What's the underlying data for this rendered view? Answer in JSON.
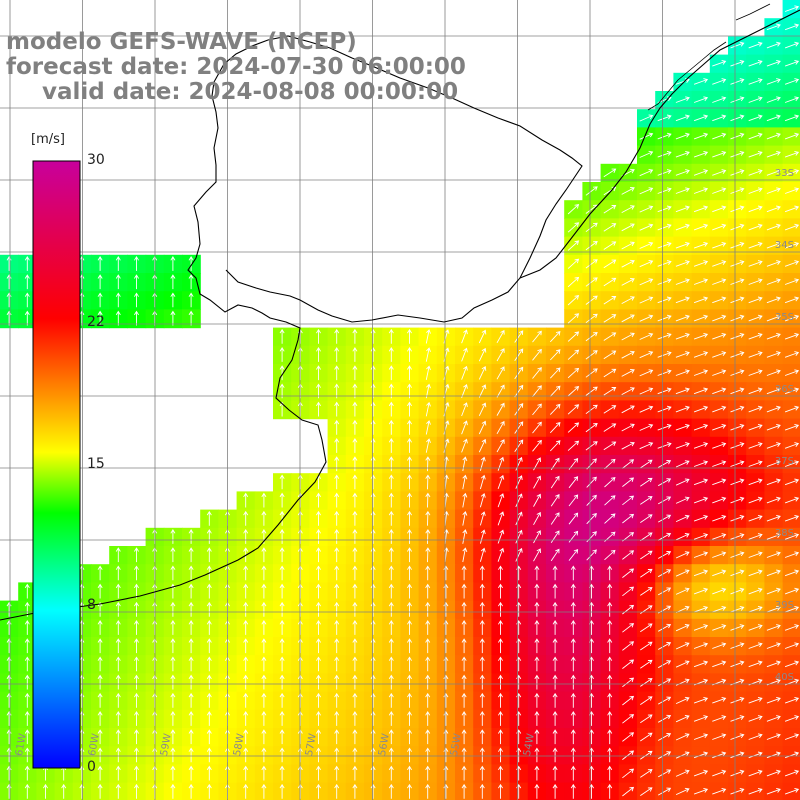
{
  "title": {
    "line1": "modelo GEFS-WAVE (NCEP)",
    "line2": "forecast date: 2024-07-30 06:00:00",
    "line3": "valid date: 2024-08-08 00:00:00"
  },
  "colorbar": {
    "unit": "[m/s]",
    "ticks": [
      {
        "value": 30,
        "label": "30"
      },
      {
        "value": 22,
        "label": "22"
      },
      {
        "value": 15,
        "label": "15"
      },
      {
        "value": 8,
        "label": "8"
      },
      {
        "value": 0,
        "label": "0"
      }
    ],
    "range": [
      0,
      30
    ],
    "colors": [
      "#0000ff",
      "#00ffff",
      "#00ff00",
      "#ffff00",
      "#ff0000",
      "#c800a0"
    ]
  },
  "latitude_labels": [
    "33S",
    "34S",
    "35S",
    "36S",
    "37S",
    "38S",
    "39S",
    "40S"
  ],
  "longitude_labels": [
    "61W",
    "60W",
    "59W",
    "58W",
    "57W",
    "56W",
    "55W",
    "54W"
  ],
  "map_colors": {
    "land": "#ffffff",
    "coastline": "#000000",
    "grid": "#808080",
    "arrows": "#ffffff",
    "title_text": "#808080"
  }
}
